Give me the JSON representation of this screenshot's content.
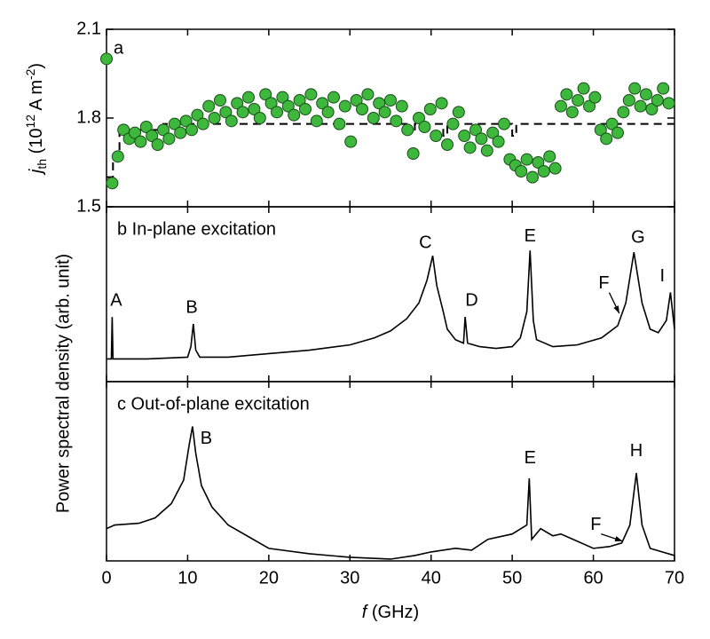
{
  "chart_data": [
    {
      "type": "scatter",
      "label": "a",
      "ylabel": {
        "symbol": "j",
        "sub": "th",
        "unit": " (10",
        "exp": "12",
        "unit2": " A m",
        "exp2": "-2",
        "close": ")"
      },
      "xlim": [
        0,
        70
      ],
      "ylim": [
        1.5,
        2.1
      ],
      "yticks": [
        1.5,
        1.8,
        2.1
      ],
      "color": "#3db83d",
      "x": [
        0,
        0.7,
        1.4,
        2.1,
        2.8,
        3.5,
        4.2,
        4.9,
        5.6,
        6.3,
        7.0,
        7.7,
        8.4,
        9.1,
        9.8,
        10.5,
        11.2,
        11.9,
        12.6,
        13.3,
        14.0,
        14.7,
        15.4,
        16.1,
        16.8,
        17.5,
        18.2,
        18.9,
        19.6,
        20.3,
        21.0,
        21.7,
        22.4,
        23.1,
        23.8,
        24.5,
        25.2,
        25.9,
        26.6,
        27.3,
        28.0,
        28.7,
        29.4,
        30.1,
        30.8,
        31.5,
        32.2,
        32.9,
        33.6,
        34.3,
        35.0,
        35.7,
        36.4,
        37.1,
        37.8,
        38.5,
        39.2,
        39.9,
        40.6,
        41.3,
        42.0,
        42.7,
        43.4,
        44.1,
        44.8,
        45.5,
        46.2,
        46.9,
        47.6,
        48.3,
        49.0,
        49.7,
        50.4,
        51.1,
        51.8,
        52.5,
        53.2,
        53.9,
        54.6,
        55.3,
        56.0,
        56.7,
        57.4,
        58.1,
        58.8,
        59.5,
        60.2,
        60.9,
        61.6,
        62.3,
        63.0,
        63.7,
        64.4,
        65.1,
        65.8,
        66.5,
        67.2,
        67.9,
        68.6,
        69.3
      ],
      "values": [
        2.0,
        1.58,
        1.67,
        1.76,
        1.73,
        1.75,
        1.72,
        1.77,
        1.74,
        1.71,
        1.76,
        1.73,
        1.78,
        1.75,
        1.79,
        1.76,
        1.81,
        1.78,
        1.84,
        1.8,
        1.86,
        1.82,
        1.79,
        1.85,
        1.82,
        1.87,
        1.83,
        1.8,
        1.88,
        1.85,
        1.82,
        1.87,
        1.84,
        1.81,
        1.86,
        1.83,
        1.88,
        1.79,
        1.85,
        1.82,
        1.87,
        1.78,
        1.84,
        1.72,
        1.86,
        1.83,
        1.88,
        1.8,
        1.85,
        1.82,
        1.86,
        1.79,
        1.84,
        1.76,
        1.68,
        1.8,
        1.77,
        1.83,
        1.74,
        1.85,
        1.71,
        1.78,
        1.82,
        1.74,
        1.7,
        1.76,
        1.73,
        1.69,
        1.75,
        1.72,
        1.78,
        1.66,
        1.64,
        1.62,
        1.66,
        1.6,
        1.65,
        1.62,
        1.67,
        1.63,
        1.84,
        1.88,
        1.82,
        1.86,
        1.9,
        1.84,
        1.87,
        1.76,
        1.73,
        1.78,
        1.75,
        1.82,
        1.86,
        1.9,
        1.84,
        1.88,
        1.83,
        1.86,
        1.9,
        1.85
      ],
      "fit": {
        "x": [
          0,
          0.8,
          0.8,
          1.6,
          1.6,
          7,
          7,
          37,
          37,
          38,
          38,
          41.5,
          41.5,
          42,
          42,
          50,
          50,
          50.5,
          50.5,
          70
        ],
        "values": [
          1.6,
          1.6,
          1.67,
          1.67,
          1.76,
          1.76,
          1.78,
          1.78,
          1.75,
          1.75,
          1.78,
          1.78,
          1.74,
          1.74,
          1.78,
          1.78,
          1.74,
          1.74,
          1.78,
          1.78
        ]
      }
    },
    {
      "type": "line",
      "label": "b In-plane excitation",
      "ylabel": "Power spectral density (arb. unit)",
      "xlim": [
        0,
        70
      ],
      "ylim": [
        0,
        1
      ],
      "color": "#000000",
      "x": [
        0,
        0.6,
        0.7,
        0.8,
        5,
        10,
        10.4,
        10.7,
        11,
        11.5,
        15,
        20,
        25,
        30,
        33,
        35,
        37,
        38.5,
        39.5,
        40.2,
        40.7,
        41.5,
        42,
        43,
        44,
        44.2,
        44.5,
        46,
        48,
        50,
        51,
        51.8,
        52.2,
        52.6,
        53,
        55,
        58,
        61,
        63,
        64,
        65,
        66,
        67,
        68,
        69,
        69.5,
        70
      ],
      "values": [
        0.13,
        0.13,
        0.37,
        0.13,
        0.13,
        0.14,
        0.2,
        0.33,
        0.18,
        0.14,
        0.14,
        0.16,
        0.18,
        0.21,
        0.25,
        0.29,
        0.36,
        0.45,
        0.58,
        0.72,
        0.55,
        0.4,
        0.3,
        0.24,
        0.22,
        0.37,
        0.22,
        0.2,
        0.19,
        0.2,
        0.25,
        0.4,
        0.75,
        0.35,
        0.24,
        0.2,
        0.21,
        0.25,
        0.32,
        0.45,
        0.74,
        0.45,
        0.3,
        0.28,
        0.35,
        0.51,
        0.3
      ],
      "annotations": [
        {
          "text": "A",
          "x": 1.2,
          "y": 0.46
        },
        {
          "text": "B",
          "x": 10.5,
          "y": 0.42
        },
        {
          "text": "C",
          "x": 39.3,
          "y": 0.79
        },
        {
          "text": "D",
          "x": 45,
          "y": 0.46
        },
        {
          "text": "E",
          "x": 52.2,
          "y": 0.83
        },
        {
          "text": "F",
          "x": 61.3,
          "y": 0.56,
          "arrow": [
            63.2,
            0.39
          ]
        },
        {
          "text": "G",
          "x": 65.5,
          "y": 0.82
        },
        {
          "text": "I",
          "x": 68.5,
          "y": 0.6
        }
      ]
    },
    {
      "type": "line",
      "label": "c Out-of-plane excitation",
      "xlim": [
        0,
        70
      ],
      "ylim": [
        0,
        1
      ],
      "color": "#000000",
      "xlabel": {
        "symbol": "f",
        "unit": " (GHz)"
      },
      "xticks": [
        0,
        10,
        20,
        30,
        40,
        50,
        60,
        70
      ],
      "x": [
        0,
        1,
        4,
        6,
        8,
        9.5,
        10.2,
        10.6,
        11,
        11.7,
        13,
        15,
        20,
        25,
        30,
        35,
        38,
        40,
        43,
        45,
        47,
        50,
        51.8,
        52.1,
        52.4,
        53.5,
        55,
        56,
        58,
        60,
        62,
        63.5,
        64.5,
        65.3,
        66,
        67,
        70
      ],
      "values": [
        0.18,
        0.2,
        0.21,
        0.24,
        0.32,
        0.45,
        0.65,
        0.75,
        0.6,
        0.42,
        0.3,
        0.2,
        0.07,
        0.04,
        0.02,
        0.01,
        0.03,
        0.05,
        0.07,
        0.06,
        0.12,
        0.15,
        0.2,
        0.46,
        0.12,
        0.18,
        0.14,
        0.15,
        0.11,
        0.07,
        0.08,
        0.1,
        0.2,
        0.49,
        0.2,
        0.07,
        0.03
      ],
      "annotations": [
        {
          "text": "B",
          "x": 12.3,
          "y": 0.68
        },
        {
          "text": "E",
          "x": 52.2,
          "y": 0.57
        },
        {
          "text": "F",
          "x": 60.3,
          "y": 0.2,
          "arrow": [
            63.6,
            0.11
          ]
        },
        {
          "text": "H",
          "x": 65.3,
          "y": 0.61
        }
      ]
    }
  ]
}
